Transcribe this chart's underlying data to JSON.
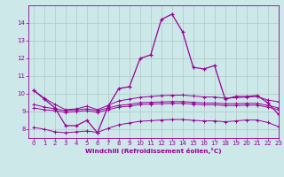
{
  "x": [
    0,
    1,
    2,
    3,
    4,
    5,
    6,
    7,
    8,
    9,
    10,
    11,
    12,
    13,
    14,
    15,
    16,
    17,
    18,
    19,
    20,
    21,
    22,
    23
  ],
  "line_main": [
    10.2,
    9.7,
    9.2,
    8.2,
    8.2,
    8.5,
    7.8,
    9.3,
    10.3,
    10.4,
    12.0,
    12.2,
    14.2,
    14.5,
    13.5,
    11.5,
    11.4,
    11.6,
    9.7,
    9.85,
    9.85,
    9.9,
    9.5,
    8.85
  ],
  "line_upper": [
    10.2,
    9.75,
    9.4,
    9.1,
    9.15,
    9.3,
    9.1,
    9.35,
    9.6,
    9.7,
    9.8,
    9.85,
    9.9,
    9.92,
    9.93,
    9.88,
    9.82,
    9.82,
    9.75,
    9.78,
    9.82,
    9.85,
    9.65,
    9.55
  ],
  "line_mid1": [
    9.4,
    9.25,
    9.15,
    9.05,
    9.1,
    9.15,
    9.05,
    9.2,
    9.35,
    9.4,
    9.5,
    9.52,
    9.54,
    9.56,
    9.56,
    9.52,
    9.48,
    9.48,
    9.44,
    9.44,
    9.46,
    9.46,
    9.35,
    9.2
  ],
  "line_mid2": [
    9.2,
    9.1,
    9.05,
    8.95,
    9.0,
    9.05,
    8.95,
    9.1,
    9.25,
    9.3,
    9.4,
    9.42,
    9.44,
    9.46,
    9.46,
    9.42,
    9.38,
    9.38,
    9.34,
    9.34,
    9.36,
    9.36,
    9.25,
    9.1
  ],
  "line_lower": [
    8.1,
    8.0,
    7.85,
    7.8,
    7.85,
    7.9,
    7.82,
    8.05,
    8.25,
    8.35,
    8.45,
    8.48,
    8.52,
    8.55,
    8.55,
    8.5,
    8.47,
    8.47,
    8.42,
    8.47,
    8.52,
    8.52,
    8.38,
    8.15
  ],
  "xlim": [
    -0.5,
    23
  ],
  "ylim": [
    7.5,
    15.0
  ],
  "yticks": [
    8,
    9,
    10,
    11,
    12,
    13,
    14
  ],
  "xticks": [
    0,
    1,
    2,
    3,
    4,
    5,
    6,
    7,
    8,
    9,
    10,
    11,
    12,
    13,
    14,
    15,
    16,
    17,
    18,
    19,
    20,
    21,
    22,
    23
  ],
  "xlabel": "Windchill (Refroidissement éolien,°C)",
  "line_color": "#990099",
  "bg_color": "#cce8e8",
  "grid_color": "#b0c8c8",
  "xlabel_color": "#990099",
  "tick_color": "#990099"
}
